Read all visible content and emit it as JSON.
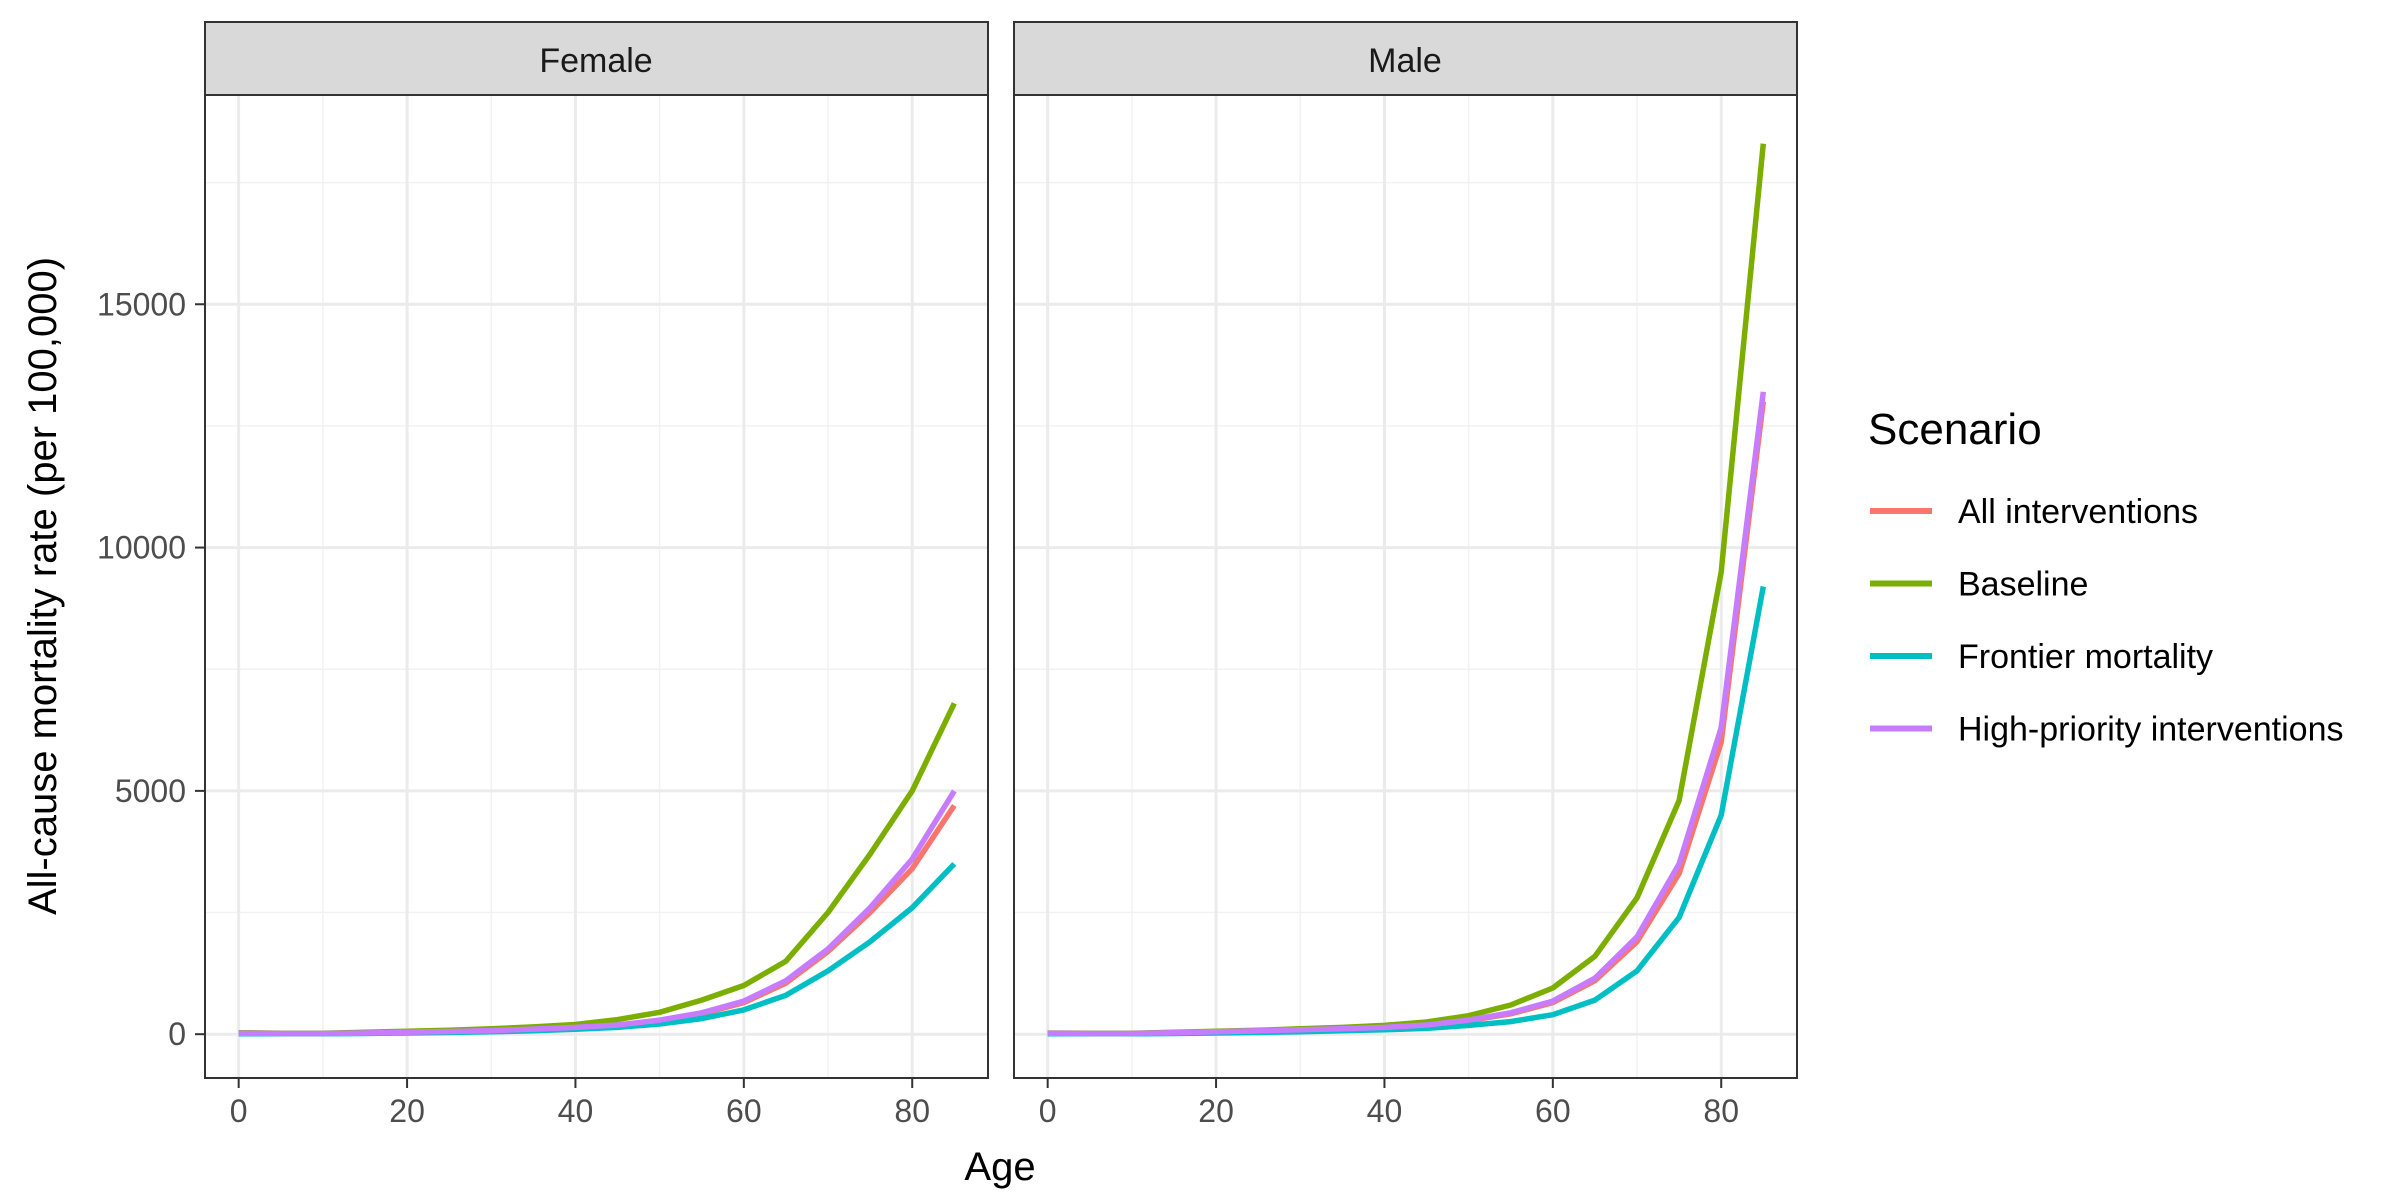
{
  "chart_data": {
    "type": "line",
    "xlabel": "Age",
    "ylabel": "All-cause mortality rate (per 100,000)",
    "xlim": [
      -4,
      89
    ],
    "ylim": [
      -900,
      19300
    ],
    "x_ticks": [
      0,
      20,
      40,
      60,
      80
    ],
    "x_tick_labels": [
      "0",
      "20",
      "40",
      "60",
      "80"
    ],
    "y_ticks": [
      0,
      5000,
      10000,
      15000
    ],
    "y_tick_labels": [
      "0",
      "5000",
      "10000",
      "15000"
    ],
    "grid": true,
    "legend": {
      "title": "Scenario",
      "placement": "right",
      "entries": [
        "All interventions",
        "Baseline",
        "Frontier mortality",
        "High-priority interventions"
      ]
    },
    "series_colors": {
      "All interventions": "#F8766D",
      "Baseline": "#7CAE00",
      "Frontier mortality": "#00BFC4",
      "High-priority interventions": "#C77CFF"
    },
    "x": [
      0,
      5,
      10,
      15,
      20,
      25,
      30,
      35,
      40,
      45,
      50,
      55,
      60,
      65,
      70,
      75,
      80,
      85
    ],
    "panels": [
      {
        "label": "Female",
        "series": [
          {
            "name": "All interventions",
            "values": [
              20,
              15,
              15,
              25,
              40,
              55,
              70,
              100,
              130,
              180,
              280,
              420,
              650,
              1050,
              1700,
              2500,
              3400,
              4700
            ]
          },
          {
            "name": "Baseline",
            "values": [
              30,
              20,
              20,
              40,
              60,
              80,
              110,
              150,
              200,
              300,
              450,
              700,
              1000,
              1500,
              2500,
              3700,
              5000,
              6800
            ]
          },
          {
            "name": "Frontier mortality",
            "values": [
              10,
              8,
              8,
              15,
              25,
              35,
              50,
              70,
              100,
              140,
              210,
              320,
              500,
              800,
              1300,
              1900,
              2600,
              3500
            ]
          },
          {
            "name": "High-priority interventions",
            "values": [
              20,
              15,
              15,
              25,
              40,
              55,
              75,
              105,
              140,
              190,
              290,
              440,
              680,
              1100,
              1750,
              2600,
              3600,
              5000
            ]
          }
        ]
      },
      {
        "label": "Male",
        "series": [
          {
            "name": "All interventions",
            "values": [
              20,
              15,
              15,
              30,
              50,
              70,
              90,
              110,
              140,
              190,
              280,
              420,
              650,
              1100,
              1900,
              3300,
              6000,
              13000
            ]
          },
          {
            "name": "Baseline",
            "values": [
              25,
              20,
              20,
              40,
              60,
              80,
              110,
              140,
              180,
              250,
              380,
              600,
              950,
              1600,
              2800,
              4800,
              9500,
              18300
            ]
          },
          {
            "name": "Frontier mortality",
            "values": [
              10,
              8,
              8,
              15,
              25,
              35,
              50,
              70,
              90,
              120,
              180,
              260,
              400,
              700,
              1300,
              2400,
              4500,
              9200
            ]
          },
          {
            "name": "High-priority interventions",
            "values": [
              20,
              15,
              15,
              30,
              50,
              70,
              90,
              110,
              140,
              190,
              290,
              440,
              680,
              1150,
              2000,
              3500,
              6300,
              13200
            ]
          }
        ]
      }
    ]
  }
}
